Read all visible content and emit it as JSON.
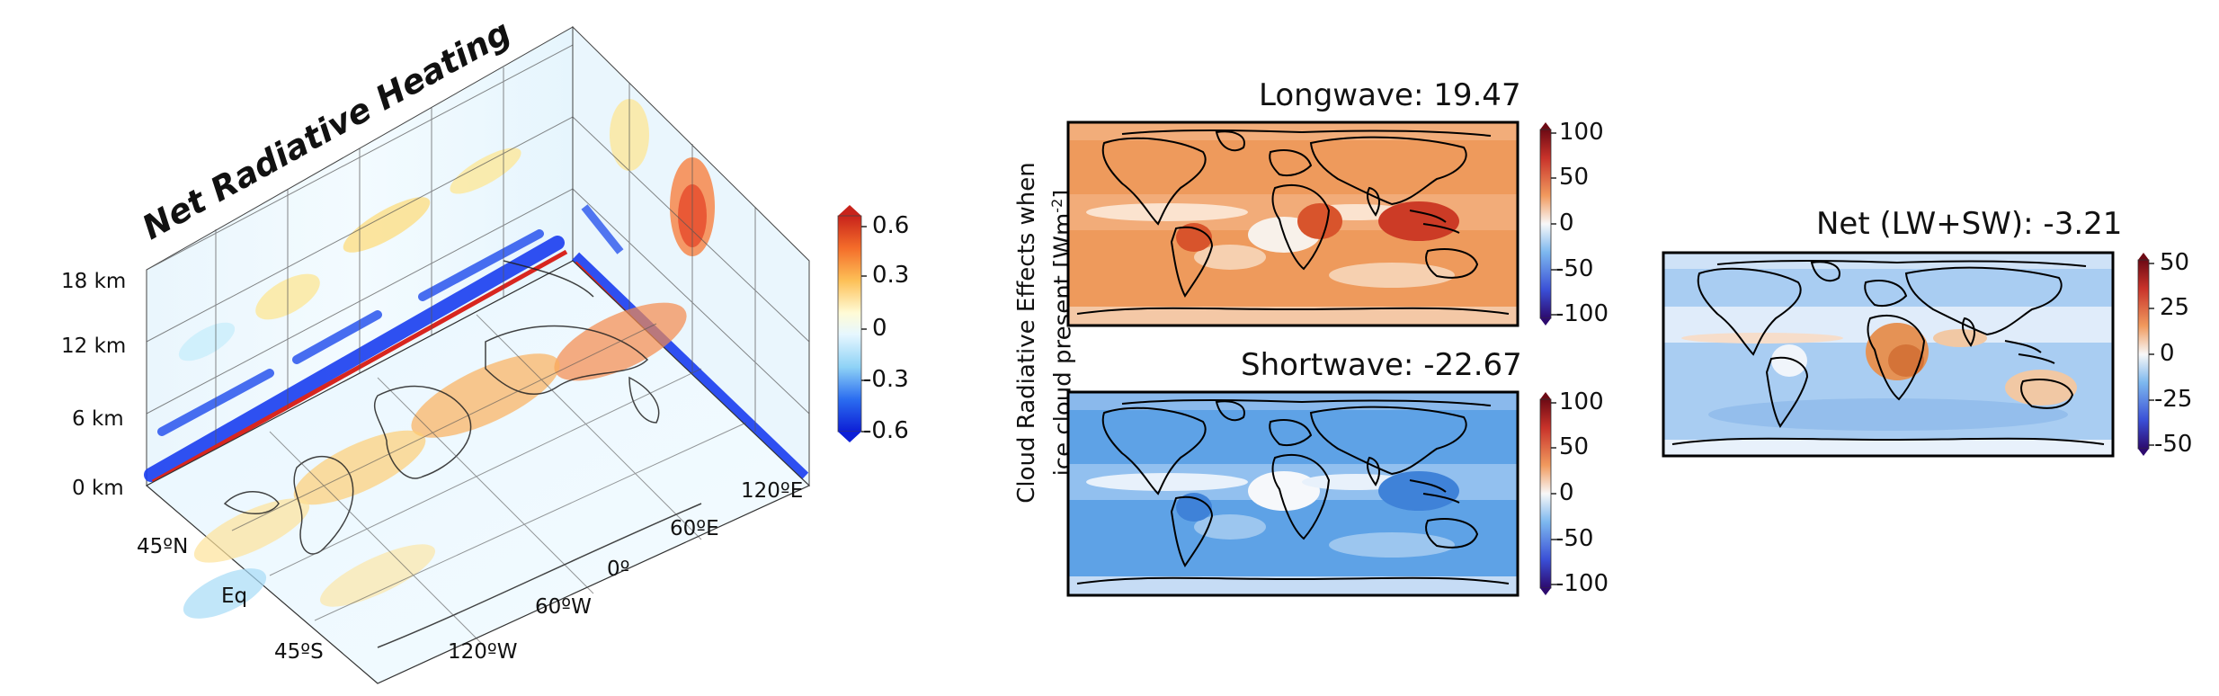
{
  "left_panel": {
    "title": "Net Radiative Heating",
    "altitude_labels": [
      "18 km",
      "12 km",
      "6 km",
      "0 km"
    ],
    "latitude_labels": [
      "45ºN",
      "Eq",
      "45ºS"
    ],
    "longitude_labels": [
      "120ºE",
      "60ºE",
      "0º",
      "60ºW",
      "120ºW"
    ],
    "colorbar_ticks": [
      "0.6",
      "0.3",
      "0",
      "-0.3",
      "-0.6"
    ]
  },
  "ylabel": {
    "line1": "Cloud Radiative Effects when",
    "line2_prefix": "ice cloud present [Wm",
    "line2_sup": "-2",
    "line2_suffix": "]"
  },
  "maps": {
    "longwave": {
      "title": "Longwave:",
      "value": "19.47"
    },
    "shortwave": {
      "title": "Shortwave:",
      "value": "-22.67"
    },
    "net": {
      "title": "Net (LW+SW):",
      "value": "-3.21"
    }
  },
  "colorbar_100_ticks": [
    "100",
    "50",
    "0",
    "-50",
    "-100"
  ],
  "colorbar_50_ticks": [
    "50",
    "25",
    "0",
    "-25",
    "-50"
  ]
}
